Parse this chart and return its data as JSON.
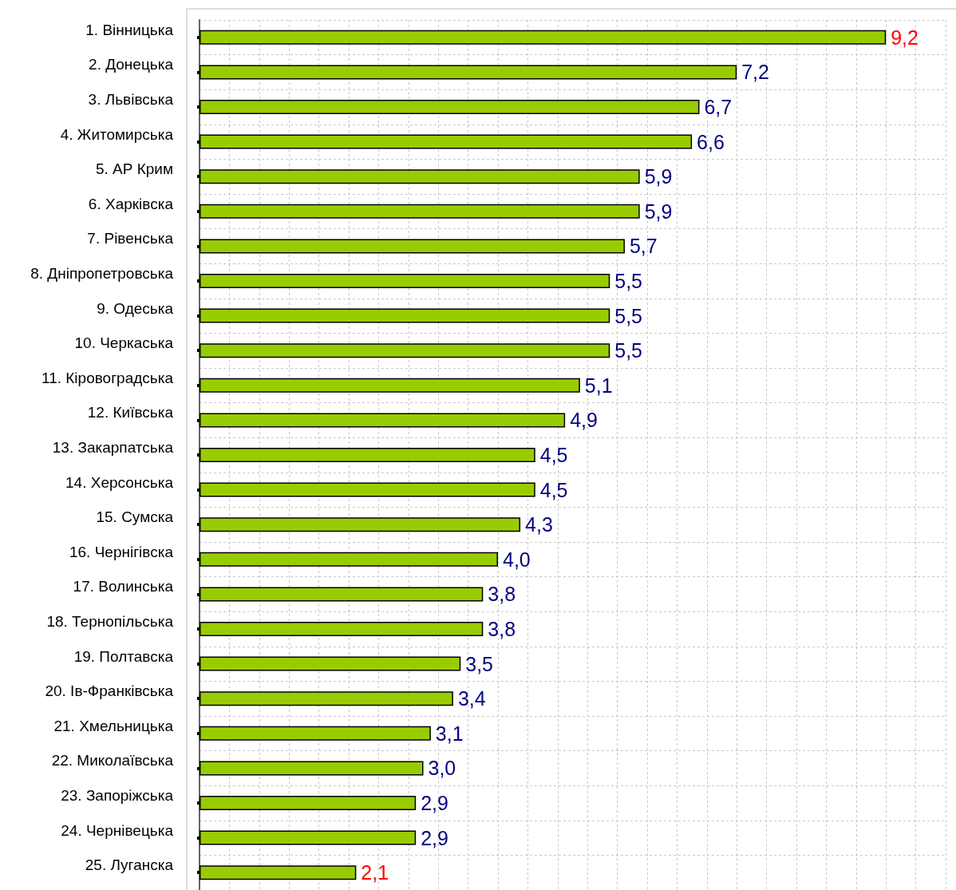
{
  "chart_data": {
    "type": "bar",
    "orientation": "horizontal",
    "categories": [
      "1. Вінницька",
      "2. Донецька",
      "3. Львівська",
      "4. Житомирська",
      "5. АР Крим",
      "6. Харківска",
      "7. Рівенська",
      "8. Дніпропетровська",
      "9. Одеська",
      "10. Черкаська",
      "11. Кіровоградська",
      "12. Київська",
      "13. Закарпатська",
      "14. Херсонська",
      "15. Сумска",
      "16. Чернігівска",
      "17. Волинська",
      "18. Тернопільська",
      "19. Полтавска",
      "20. Ів-Франківська",
      "21. Хмельницька",
      "22. Миколаївська",
      "23. Запоріжська",
      "24. Чернівецька",
      "25. Луганска"
    ],
    "values": [
      9.2,
      7.2,
      6.7,
      6.6,
      5.9,
      5.9,
      5.7,
      5.5,
      5.5,
      5.5,
      5.1,
      4.9,
      4.5,
      4.5,
      4.3,
      4.0,
      3.8,
      3.8,
      3.5,
      3.4,
      3.1,
      3.0,
      2.9,
      2.9,
      2.1
    ],
    "value_labels": [
      "9,2",
      "7,2",
      "6,7",
      "6,6",
      "5,9",
      "5,9",
      "5,7",
      "5,5",
      "5,5",
      "5,5",
      "5,1",
      "4,9",
      "4,5",
      "4,5",
      "4,3",
      "4,0",
      "3,8",
      "3,8",
      "3,5",
      "3,4",
      "3,1",
      "3,0",
      "2,9",
      "2,9",
      "2,1"
    ],
    "color": "#99cc00",
    "xlim": [
      0,
      10
    ],
    "xticks": [
      {
        "value": 0,
        "label": null
      },
      {
        "value": 0.4,
        "label": null
      },
      {
        "value": 0.8,
        "label": null
      },
      {
        "value": 1.2,
        "label": null
      },
      {
        "value": 1.6,
        "label": null
      },
      {
        "value": 2,
        "label": null
      },
      {
        "value": 2.4,
        "label": null
      },
      {
        "value": 2.8,
        "label": null
      },
      {
        "value": 3.2,
        "label": null
      },
      {
        "value": 3.6,
        "label": null
      },
      {
        "value": 4,
        "label": null
      },
      {
        "value": 4.4,
        "label": null
      },
      {
        "value": 4.8,
        "label": null
      },
      {
        "value": 5.2,
        "label": null
      },
      {
        "value": 5.6,
        "label": null
      },
      {
        "value": 6,
        "label": null
      },
      {
        "value": 6.4,
        "label": null
      },
      {
        "value": 6.8,
        "label": null
      },
      {
        "value": 7.2,
        "label": null
      },
      {
        "value": 7.6,
        "label": null
      },
      {
        "value": 8,
        "label": null
      },
      {
        "value": 8.4,
        "label": null
      },
      {
        "value": 8.8,
        "label": null
      },
      {
        "value": 9.2,
        "label": null
      },
      {
        "value": 9.6,
        "label": null
      },
      {
        "value": 10,
        "label": null
      }
    ],
    "grid": true,
    "tick_labels": "y"
  }
}
